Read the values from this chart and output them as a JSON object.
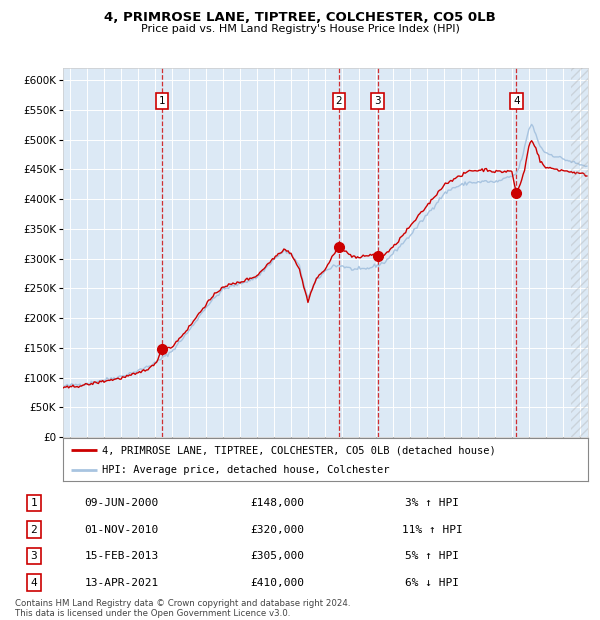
{
  "title": "4, PRIMROSE LANE, TIPTREE, COLCHESTER, CO5 0LB",
  "subtitle": "Price paid vs. HM Land Registry's House Price Index (HPI)",
  "hpi_label": "HPI: Average price, detached house, Colchester",
  "property_label": "4, PRIMROSE LANE, TIPTREE, COLCHESTER, CO5 0LB (detached house)",
  "hpi_color": "#a8c4e0",
  "property_color": "#cc0000",
  "plot_bg": "#dce9f5",
  "ylim": [
    0,
    620000
  ],
  "yticks": [
    0,
    50000,
    100000,
    150000,
    200000,
    250000,
    300000,
    350000,
    400000,
    450000,
    500000,
    550000,
    600000
  ],
  "xlim_start": 1994.6,
  "xlim_end": 2025.5,
  "transactions": [
    {
      "num": 1,
      "date": "09-JUN-2000",
      "price": 148000,
      "year": 2000.44,
      "pct": "3%",
      "dir": "↑"
    },
    {
      "num": 2,
      "date": "01-NOV-2010",
      "price": 320000,
      "year": 2010.83,
      "pct": "11%",
      "dir": "↑"
    },
    {
      "num": 3,
      "date": "15-FEB-2013",
      "price": 305000,
      "year": 2013.12,
      "pct": "5%",
      "dir": "↑"
    },
    {
      "num": 4,
      "date": "13-APR-2021",
      "price": 410000,
      "year": 2021.28,
      "pct": "6%",
      "dir": "↓"
    }
  ],
  "footer": "Contains HM Land Registry data © Crown copyright and database right 2024.\nThis data is licensed under the Open Government Licence v3.0.",
  "hpi_anchors": [
    [
      1994.6,
      85000
    ],
    [
      1995.0,
      87000
    ],
    [
      1996.0,
      90000
    ],
    [
      1997.0,
      96000
    ],
    [
      1998.0,
      102000
    ],
    [
      1999.0,
      111000
    ],
    [
      2000.0,
      124000
    ],
    [
      2001.0,
      144000
    ],
    [
      2002.0,
      178000
    ],
    [
      2003.0,
      218000
    ],
    [
      2004.0,
      248000
    ],
    [
      2005.0,
      258000
    ],
    [
      2006.0,
      268000
    ],
    [
      2007.0,
      298000
    ],
    [
      2007.6,
      313000
    ],
    [
      2008.0,
      308000
    ],
    [
      2008.5,
      288000
    ],
    [
      2009.0,
      233000
    ],
    [
      2009.5,
      263000
    ],
    [
      2010.0,
      278000
    ],
    [
      2010.5,
      288000
    ],
    [
      2011.0,
      288000
    ],
    [
      2011.5,
      283000
    ],
    [
      2012.0,
      281000
    ],
    [
      2012.5,
      283000
    ],
    [
      2013.0,
      288000
    ],
    [
      2013.5,
      293000
    ],
    [
      2014.0,
      308000
    ],
    [
      2015.0,
      338000
    ],
    [
      2016.0,
      373000
    ],
    [
      2017.0,
      408000
    ],
    [
      2017.5,
      418000
    ],
    [
      2018.0,
      423000
    ],
    [
      2018.5,
      428000
    ],
    [
      2019.0,
      428000
    ],
    [
      2019.5,
      430000
    ],
    [
      2020.0,
      428000
    ],
    [
      2020.5,
      433000
    ],
    [
      2021.0,
      438000
    ],
    [
      2021.3,
      443000
    ],
    [
      2021.5,
      458000
    ],
    [
      2021.8,
      490000
    ],
    [
      2022.0,
      515000
    ],
    [
      2022.2,
      528000
    ],
    [
      2022.4,
      510000
    ],
    [
      2022.7,
      488000
    ],
    [
      2023.0,
      478000
    ],
    [
      2023.5,
      473000
    ],
    [
      2024.0,
      468000
    ],
    [
      2024.5,
      463000
    ],
    [
      2025.0,
      458000
    ],
    [
      2025.5,
      455000
    ]
  ],
  "prop_anchors": [
    [
      1994.6,
      82000
    ],
    [
      1995.0,
      84000
    ],
    [
      1996.0,
      88000
    ],
    [
      1997.0,
      94000
    ],
    [
      1998.0,
      99000
    ],
    [
      1999.0,
      107000
    ],
    [
      2000.0,
      121000
    ],
    [
      2000.44,
      148000
    ],
    [
      2001.0,
      151000
    ],
    [
      2002.0,
      184000
    ],
    [
      2003.0,
      223000
    ],
    [
      2004.0,
      253000
    ],
    [
      2005.0,
      260000
    ],
    [
      2006.0,
      271000
    ],
    [
      2007.0,
      301000
    ],
    [
      2007.6,
      316000
    ],
    [
      2008.0,
      310000
    ],
    [
      2008.5,
      283000
    ],
    [
      2009.0,
      228000
    ],
    [
      2009.5,
      266000
    ],
    [
      2010.0,
      281000
    ],
    [
      2010.83,
      320000
    ],
    [
      2011.0,
      316000
    ],
    [
      2011.5,
      306000
    ],
    [
      2012.0,
      301000
    ],
    [
      2012.5,
      305000
    ],
    [
      2013.0,
      308000
    ],
    [
      2013.12,
      305000
    ],
    [
      2013.5,
      306000
    ],
    [
      2014.0,
      318000
    ],
    [
      2015.0,
      353000
    ],
    [
      2016.0,
      388000
    ],
    [
      2017.0,
      423000
    ],
    [
      2017.5,
      433000
    ],
    [
      2018.0,
      438000
    ],
    [
      2018.5,
      448000
    ],
    [
      2019.0,
      448000
    ],
    [
      2019.5,
      450000
    ],
    [
      2020.0,
      446000
    ],
    [
      2020.5,
      446000
    ],
    [
      2021.0,
      448000
    ],
    [
      2021.28,
      410000
    ],
    [
      2021.5,
      423000
    ],
    [
      2021.8,
      453000
    ],
    [
      2022.0,
      488000
    ],
    [
      2022.2,
      500000
    ],
    [
      2022.4,
      488000
    ],
    [
      2022.7,
      463000
    ],
    [
      2023.0,
      453000
    ],
    [
      2023.5,
      451000
    ],
    [
      2024.0,
      448000
    ],
    [
      2024.5,
      446000
    ],
    [
      2025.0,
      443000
    ],
    [
      2025.5,
      440000
    ]
  ]
}
